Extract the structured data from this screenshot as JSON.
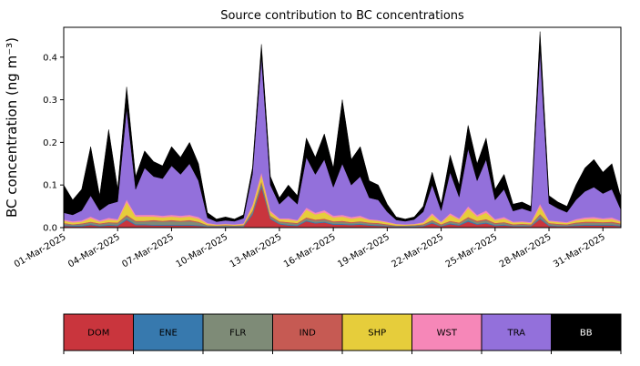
{
  "figure": {
    "background": "#ffffff"
  },
  "chart_data": {
    "type": "area",
    "stacked": true,
    "title": "Source contribution to BC concentrations",
    "xlabel": "",
    "ylabel": "BC concentration (ng m⁻³)",
    "ylim": [
      0,
      0.47
    ],
    "xlim_days": [
      1,
      32
    ],
    "grid": false,
    "legend_position": "bottom",
    "yticks": [
      0.0,
      0.1,
      0.2,
      0.3,
      0.4
    ],
    "xticks": [
      {
        "day": 1,
        "label": "01-Mar-2025"
      },
      {
        "day": 4,
        "label": "04-Mar-2025"
      },
      {
        "day": 7,
        "label": "07-Mar-2025"
      },
      {
        "day": 10,
        "label": "10-Mar-2025"
      },
      {
        "day": 13,
        "label": "13-Mar-2025"
      },
      {
        "day": 16,
        "label": "16-Mar-2025"
      },
      {
        "day": 19,
        "label": "19-Mar-2025"
      },
      {
        "day": 22,
        "label": "22-Mar-2025"
      },
      {
        "day": 25,
        "label": "25-Mar-2025"
      },
      {
        "day": 28,
        "label": "28-Mar-2025"
      },
      {
        "day": 31,
        "label": "31-Mar-2025"
      }
    ],
    "x_days": [
      1,
      1.5,
      2,
      2.5,
      3,
      3.5,
      4,
      4.5,
      5,
      5.5,
      6,
      6.5,
      7,
      7.5,
      8,
      8.5,
      9,
      9.5,
      10,
      10.5,
      11,
      11.5,
      12,
      12.5,
      13,
      13.5,
      14,
      14.5,
      15,
      15.5,
      16,
      16.5,
      17,
      17.5,
      18,
      18.5,
      19,
      19.5,
      20,
      20.5,
      21,
      21.5,
      22,
      22.5,
      23,
      23.5,
      24,
      24.5,
      25,
      25.5,
      26,
      26.5,
      27,
      27.5,
      28,
      28.5,
      29,
      29.5,
      30,
      30.5,
      31,
      31.5,
      32
    ],
    "series": [
      {
        "name": "DOM",
        "color": "#c9353d",
        "values": [
          0.004,
          0.003,
          0.003,
          0.006,
          0.003,
          0.005,
          0.004,
          0.018,
          0.006,
          0.006,
          0.005,
          0.005,
          0.005,
          0.005,
          0.005,
          0.004,
          0.002,
          0.002,
          0.002,
          0.002,
          0.002,
          0.03,
          0.095,
          0.02,
          0.008,
          0.005,
          0.004,
          0.015,
          0.01,
          0.012,
          0.007,
          0.007,
          0.006,
          0.007,
          0.005,
          0.004,
          0.003,
          0.002,
          0.002,
          0.002,
          0.003,
          0.01,
          0.003,
          0.008,
          0.005,
          0.014,
          0.007,
          0.01,
          0.004,
          0.005,
          0.003,
          0.003,
          0.003,
          0.02,
          0.004,
          0.003,
          0.003,
          0.004,
          0.005,
          0.005,
          0.005,
          0.005,
          0.003
        ]
      },
      {
        "name": "ENE",
        "color": "#3779ae",
        "values": [
          0.002,
          0.002,
          0.002,
          0.002,
          0.002,
          0.002,
          0.002,
          0.003,
          0.002,
          0.002,
          0.002,
          0.002,
          0.002,
          0.002,
          0.002,
          0.002,
          0.001,
          0.001,
          0.001,
          0.001,
          0.001,
          0.003,
          0.004,
          0.002,
          0.002,
          0.002,
          0.002,
          0.002,
          0.002,
          0.002,
          0.002,
          0.002,
          0.002,
          0.002,
          0.002,
          0.002,
          0.001,
          0.001,
          0.001,
          0.001,
          0.001,
          0.002,
          0.001,
          0.002,
          0.002,
          0.003,
          0.002,
          0.002,
          0.002,
          0.002,
          0.001,
          0.001,
          0.001,
          0.003,
          0.002,
          0.001,
          0.001,
          0.002,
          0.002,
          0.002,
          0.002,
          0.002,
          0.002
        ]
      },
      {
        "name": "FLR",
        "color": "#7e8b77",
        "values": [
          0.003,
          0.002,
          0.003,
          0.004,
          0.003,
          0.004,
          0.004,
          0.006,
          0.006,
          0.006,
          0.008,
          0.007,
          0.008,
          0.007,
          0.008,
          0.006,
          0.002,
          0.001,
          0.002,
          0.001,
          0.002,
          0.004,
          0.006,
          0.004,
          0.003,
          0.004,
          0.003,
          0.004,
          0.004,
          0.004,
          0.004,
          0.004,
          0.003,
          0.004,
          0.003,
          0.003,
          0.002,
          0.001,
          0.001,
          0.002,
          0.002,
          0.004,
          0.002,
          0.004,
          0.003,
          0.005,
          0.004,
          0.005,
          0.003,
          0.004,
          0.002,
          0.003,
          0.002,
          0.006,
          0.003,
          0.003,
          0.002,
          0.004,
          0.004,
          0.004,
          0.004,
          0.004,
          0.003
        ]
      },
      {
        "name": "IND",
        "color": "#c65a53",
        "values": [
          0.002,
          0.001,
          0.002,
          0.002,
          0.002,
          0.002,
          0.002,
          0.003,
          0.002,
          0.002,
          0.003,
          0.002,
          0.003,
          0.002,
          0.003,
          0.002,
          0.001,
          0.001,
          0.001,
          0.001,
          0.001,
          0.003,
          0.004,
          0.002,
          0.002,
          0.002,
          0.002,
          0.003,
          0.003,
          0.003,
          0.002,
          0.003,
          0.002,
          0.002,
          0.002,
          0.002,
          0.002,
          0.001,
          0.001,
          0.001,
          0.002,
          0.002,
          0.002,
          0.002,
          0.002,
          0.003,
          0.003,
          0.003,
          0.002,
          0.002,
          0.002,
          0.002,
          0.002,
          0.003,
          0.002,
          0.002,
          0.002,
          0.002,
          0.003,
          0.003,
          0.002,
          0.003,
          0.002
        ]
      },
      {
        "name": "SHP",
        "color": "#e6cd3b",
        "values": [
          0.005,
          0.004,
          0.004,
          0.008,
          0.004,
          0.006,
          0.005,
          0.03,
          0.01,
          0.01,
          0.008,
          0.008,
          0.008,
          0.008,
          0.008,
          0.007,
          0.003,
          0.002,
          0.002,
          0.002,
          0.002,
          0.01,
          0.015,
          0.008,
          0.005,
          0.006,
          0.005,
          0.018,
          0.012,
          0.015,
          0.009,
          0.01,
          0.008,
          0.009,
          0.006,
          0.005,
          0.004,
          0.003,
          0.002,
          0.002,
          0.003,
          0.012,
          0.004,
          0.014,
          0.007,
          0.02,
          0.01,
          0.015,
          0.006,
          0.008,
          0.004,
          0.004,
          0.003,
          0.018,
          0.004,
          0.004,
          0.003,
          0.005,
          0.006,
          0.007,
          0.006,
          0.006,
          0.004
        ]
      },
      {
        "name": "WST",
        "color": "#f687b8",
        "values": [
          0.003,
          0.003,
          0.003,
          0.004,
          0.003,
          0.004,
          0.003,
          0.006,
          0.004,
          0.004,
          0.004,
          0.004,
          0.004,
          0.004,
          0.004,
          0.004,
          0.002,
          0.001,
          0.001,
          0.001,
          0.002,
          0.004,
          0.006,
          0.004,
          0.002,
          0.003,
          0.002,
          0.005,
          0.004,
          0.005,
          0.004,
          0.004,
          0.004,
          0.004,
          0.002,
          0.002,
          0.002,
          0.001,
          0.001,
          0.001,
          0.002,
          0.004,
          0.002,
          0.004,
          0.003,
          0.005,
          0.004,
          0.005,
          0.003,
          0.004,
          0.002,
          0.002,
          0.002,
          0.006,
          0.002,
          0.002,
          0.002,
          0.003,
          0.004,
          0.004,
          0.003,
          0.004,
          0.002
        ]
      },
      {
        "name": "TRA",
        "color": "#9370db",
        "values": [
          0.016,
          0.015,
          0.023,
          0.049,
          0.023,
          0.032,
          0.041,
          0.214,
          0.06,
          0.11,
          0.09,
          0.087,
          0.115,
          0.097,
          0.12,
          0.085,
          0.012,
          0.006,
          0.008,
          0.007,
          0.012,
          0.071,
          0.27,
          0.06,
          0.033,
          0.053,
          0.037,
          0.118,
          0.09,
          0.119,
          0.067,
          0.12,
          0.075,
          0.092,
          0.05,
          0.047,
          0.023,
          0.009,
          0.007,
          0.01,
          0.024,
          0.066,
          0.026,
          0.096,
          0.05,
          0.135,
          0.08,
          0.12,
          0.045,
          0.065,
          0.025,
          0.03,
          0.025,
          0.36,
          0.04,
          0.03,
          0.023,
          0.045,
          0.061,
          0.07,
          0.058,
          0.066,
          0.026
        ]
      },
      {
        "name": "BB",
        "color": "#000000",
        "values": [
          0.065,
          0.035,
          0.05,
          0.115,
          0.035,
          0.175,
          0.03,
          0.05,
          0.03,
          0.04,
          0.035,
          0.03,
          0.045,
          0.04,
          0.05,
          0.04,
          0.012,
          0.006,
          0.008,
          0.005,
          0.008,
          0.015,
          0.03,
          0.02,
          0.015,
          0.025,
          0.02,
          0.045,
          0.04,
          0.06,
          0.045,
          0.15,
          0.06,
          0.07,
          0.04,
          0.035,
          0.018,
          0.007,
          0.005,
          0.006,
          0.013,
          0.03,
          0.015,
          0.04,
          0.028,
          0.055,
          0.04,
          0.05,
          0.025,
          0.035,
          0.016,
          0.015,
          0.012,
          0.044,
          0.018,
          0.015,
          0.014,
          0.035,
          0.055,
          0.065,
          0.05,
          0.06,
          0.028
        ]
      }
    ]
  },
  "legend": {
    "items": [
      {
        "label": "DOM",
        "color": "#c9353d",
        "label_color": "#000000"
      },
      {
        "label": "ENE",
        "color": "#3779ae",
        "label_color": "#000000"
      },
      {
        "label": "FLR",
        "color": "#7e8b77",
        "label_color": "#000000"
      },
      {
        "label": "IND",
        "color": "#c65a53",
        "label_color": "#000000"
      },
      {
        "label": "SHP",
        "color": "#e6cd3b",
        "label_color": "#000000"
      },
      {
        "label": "WST",
        "color": "#f687b8",
        "label_color": "#000000"
      },
      {
        "label": "TRA",
        "color": "#9370db",
        "label_color": "#000000"
      },
      {
        "label": "BB",
        "color": "#000000",
        "label_color": "#ffffff"
      }
    ]
  }
}
